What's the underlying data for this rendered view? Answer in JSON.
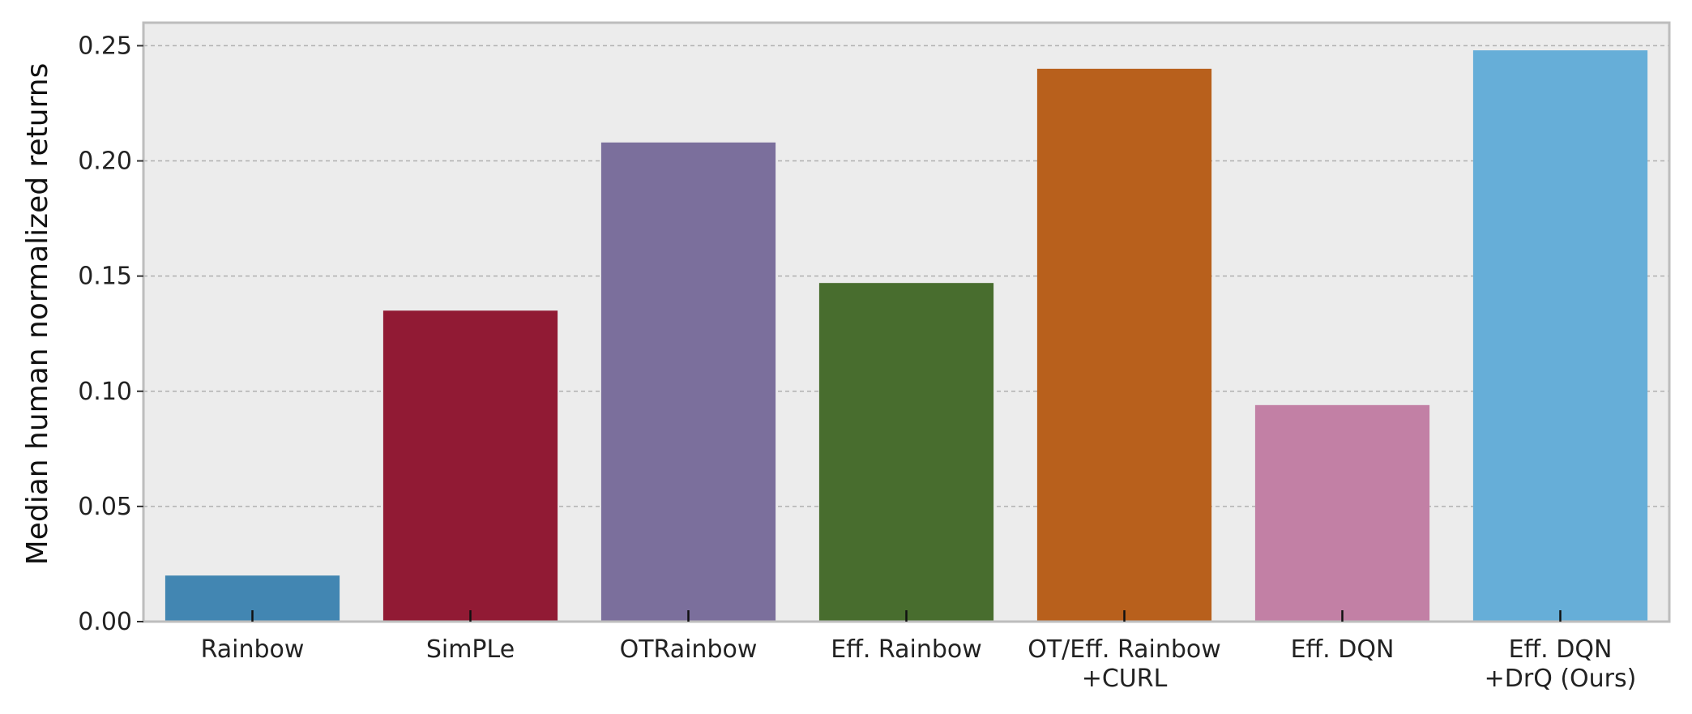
{
  "chart_data": {
    "type": "bar",
    "title": "",
    "xlabel": "",
    "ylabel": "Median human normalized returns",
    "categories": [
      [
        "Rainbow"
      ],
      [
        "SimPLe"
      ],
      [
        "OTRainbow"
      ],
      [
        "Eff. Rainbow"
      ],
      [
        "OT/Eff. Rainbow",
        "+CURL"
      ],
      [
        "Eff. DQN"
      ],
      [
        "Eff. DQN",
        "+DrQ (Ours)"
      ]
    ],
    "values": [
      0.02,
      0.135,
      0.208,
      0.147,
      0.24,
      0.094,
      0.248
    ],
    "colors": [
      "#4286b2",
      "#911a34",
      "#7b6f9c",
      "#486d2e",
      "#b8601c",
      "#c280a5",
      "#66aed8"
    ],
    "ylim": [
      0,
      0.26
    ],
    "yticks": [
      "0.00",
      "0.05",
      "0.10",
      "0.15",
      "0.20",
      "0.25"
    ],
    "grid": true,
    "grid_axis": "y",
    "legend": "none",
    "background": "#ececec"
  }
}
